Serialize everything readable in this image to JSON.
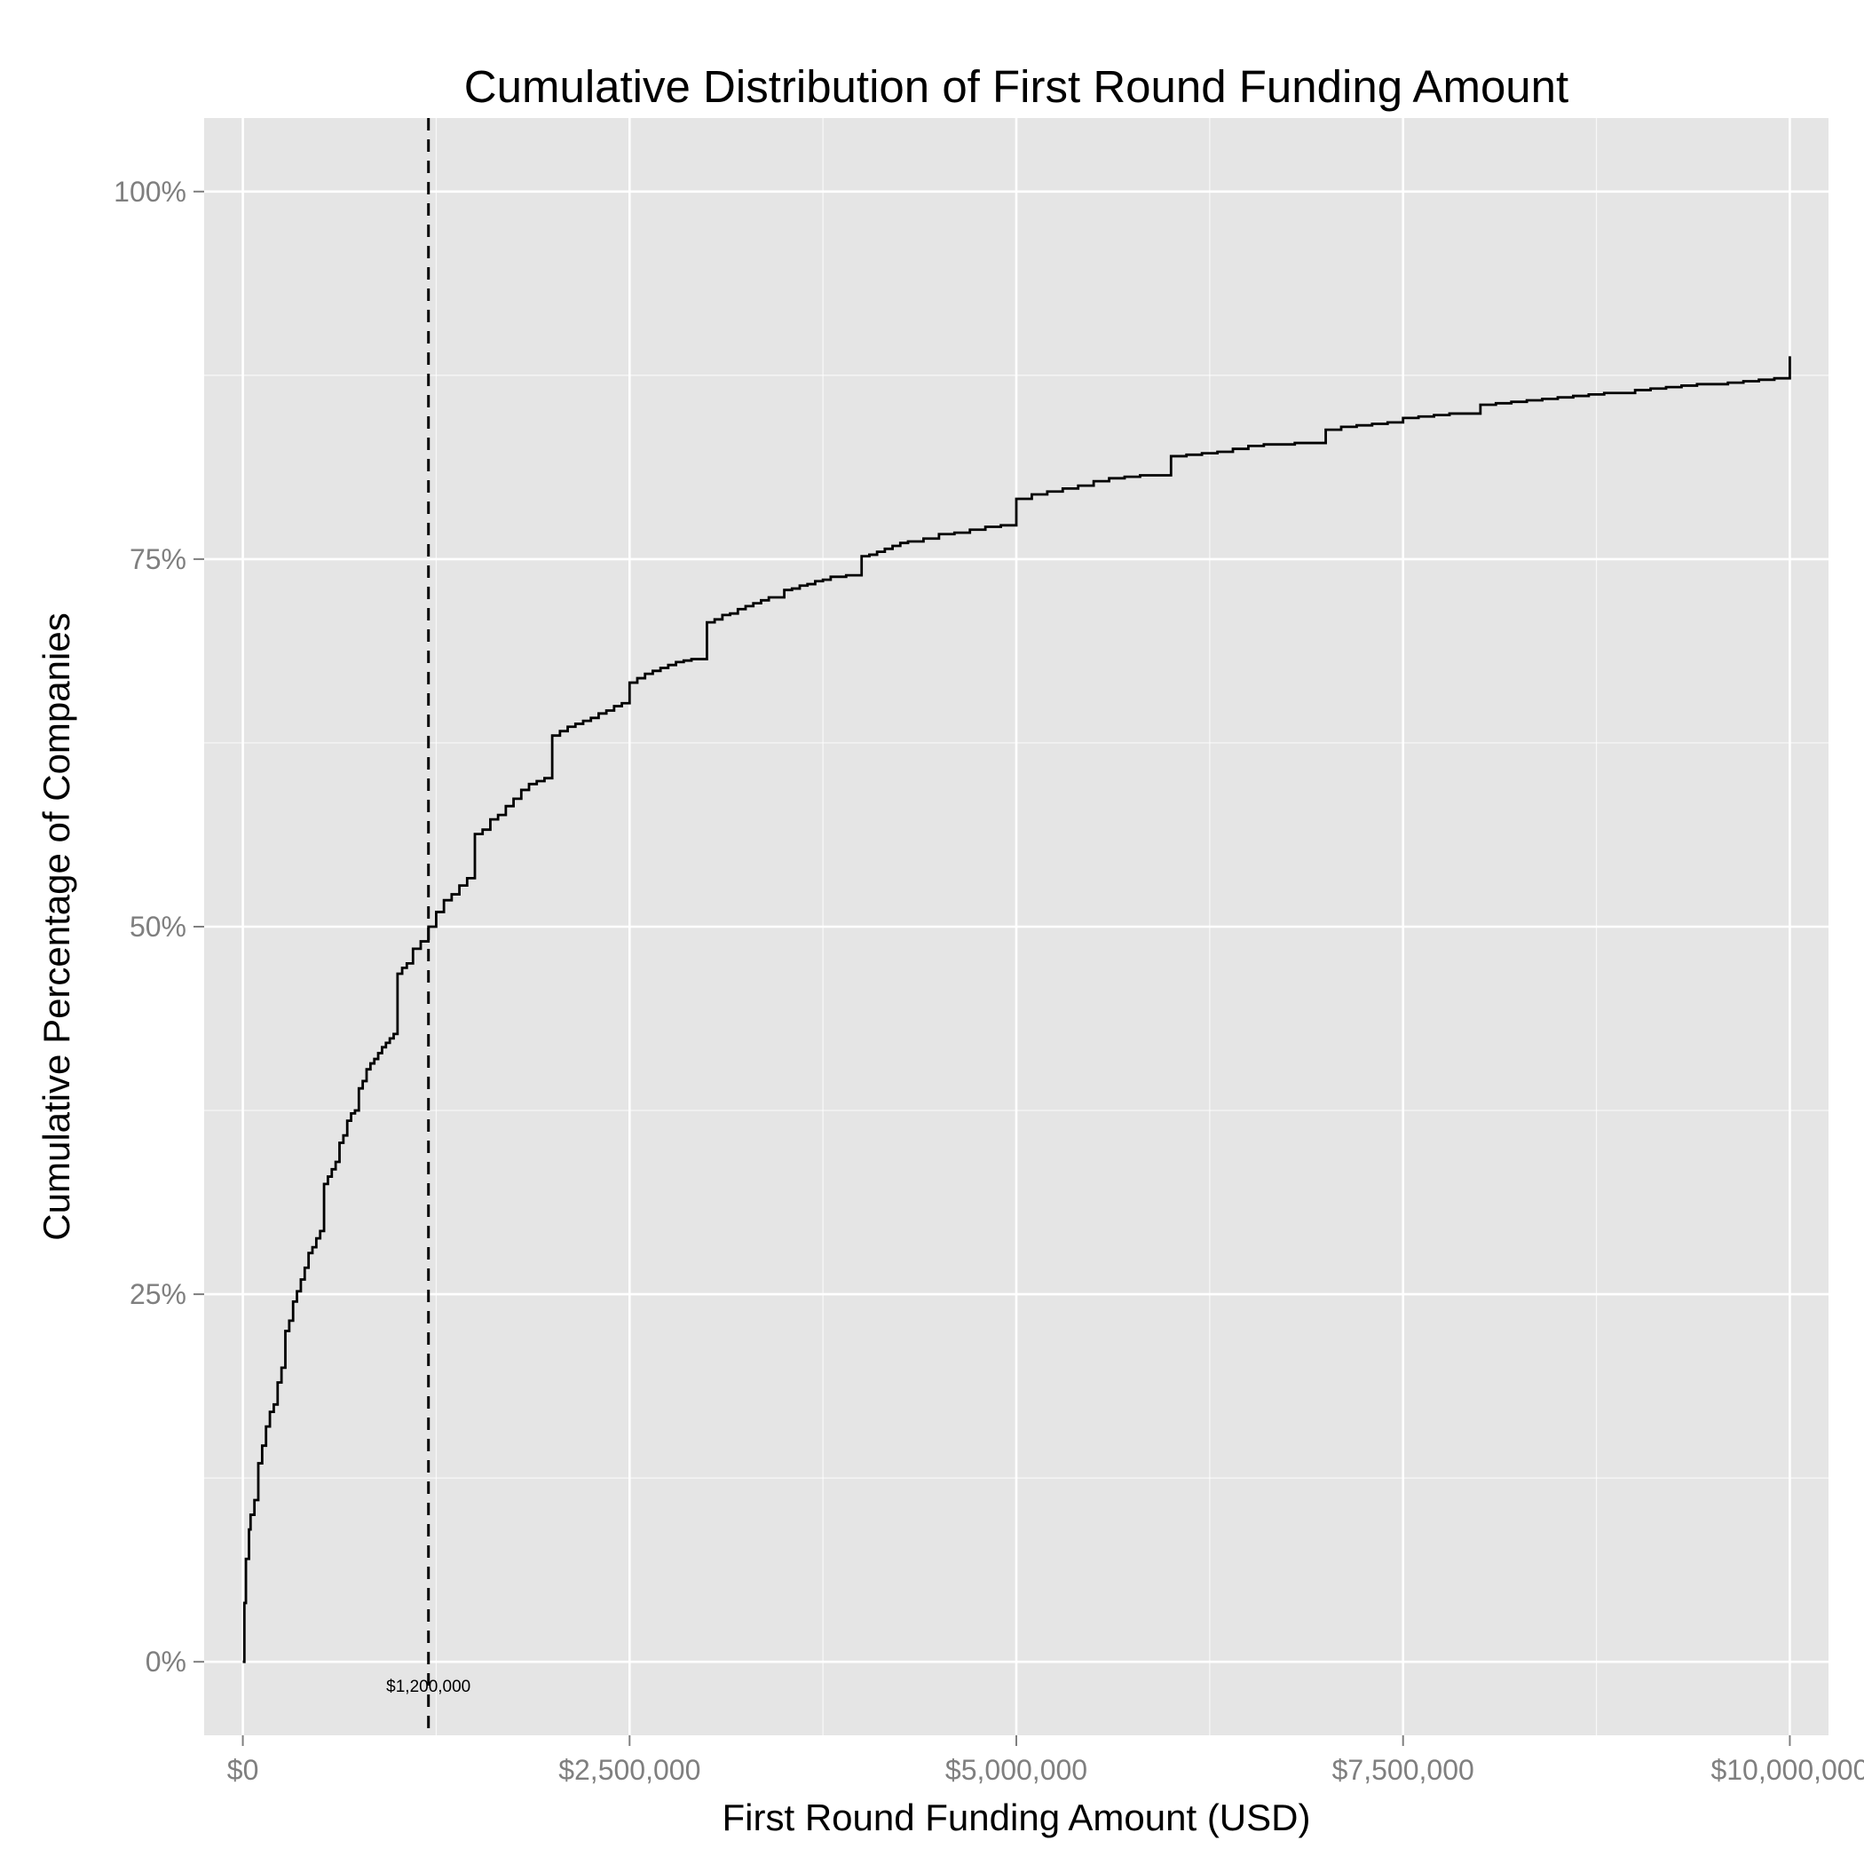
{
  "chart_data": {
    "type": "line",
    "title": "Cumulative Distribution of First Round Funding Amount",
    "xlabel": "First Round Funding Amount (USD)",
    "ylabel": "Cumulative Percentage of Companies",
    "xlim": [
      -250000,
      10250000
    ],
    "ylim": [
      -0.05,
      1.05
    ],
    "x_ticks": [
      0,
      2500000,
      5000000,
      7500000,
      10000000
    ],
    "x_tick_labels": [
      "$0",
      "$2,500,000",
      "$5,000,000",
      "$7,500,000",
      "$10,000,000"
    ],
    "y_ticks": [
      0,
      0.25,
      0.5,
      0.75,
      1.0
    ],
    "y_tick_labels": [
      "0%",
      "25%",
      "50%",
      "75%",
      "100%"
    ],
    "grid": true,
    "legend": "none",
    "colors": {
      "panel": "#e5e5e5",
      "grid": "#ffffff",
      "line": "#000000",
      "tick_text": "#7f7f7f"
    },
    "reference_line": {
      "x": 1200000,
      "label": "$1,200,000",
      "style": "dashed"
    },
    "series": [
      {
        "x": [
          0,
          10000,
          20000,
          40000,
          50000,
          75000,
          100000,
          125000,
          150000,
          175000,
          200000,
          225000,
          250000,
          275000,
          300000,
          325000,
          350000,
          375000,
          400000,
          425000,
          450000,
          475000,
          500000,
          525000,
          550000,
          575000,
          600000,
          625000,
          650000,
          675000,
          700000,
          725000,
          750000,
          775000,
          800000,
          825000,
          850000,
          875000,
          900000,
          925000,
          950000,
          975000,
          1000000,
          1030000,
          1060000,
          1100000,
          1150000,
          1200000,
          1250000,
          1300000,
          1350000,
          1400000,
          1450000,
          1500000,
          1550000,
          1600000,
          1650000,
          1700000,
          1750000,
          1800000,
          1850000,
          1900000,
          1950000,
          2000000,
          2050000,
          2100000,
          2150000,
          2200000,
          2250000,
          2300000,
          2350000,
          2400000,
          2450000,
          2500000,
          2550000,
          2600000,
          2650000,
          2700000,
          2750000,
          2800000,
          2850000,
          2900000,
          3000000,
          3050000,
          3100000,
          3150000,
          3200000,
          3250000,
          3300000,
          3350000,
          3400000,
          3500000,
          3550000,
          3600000,
          3650000,
          3700000,
          3750000,
          3800000,
          3900000,
          4000000,
          4050000,
          4100000,
          4150000,
          4200000,
          4250000,
          4300000,
          4400000,
          4500000,
          4600000,
          4700000,
          4800000,
          4900000,
          5000000,
          5100000,
          5200000,
          5300000,
          5400000,
          5500000,
          5600000,
          5700000,
          5800000,
          6000000,
          6100000,
          6200000,
          6300000,
          6400000,
          6500000,
          6600000,
          6800000,
          7000000,
          7100000,
          7200000,
          7300000,
          7400000,
          7500000,
          7600000,
          7700000,
          7800000,
          8000000,
          8100000,
          8200000,
          8300000,
          8400000,
          8500000,
          8600000,
          8700000,
          8800000,
          9000000,
          9100000,
          9200000,
          9300000,
          9400000,
          9500000,
          9600000,
          9700000,
          9800000,
          9900000,
          10000000,
          10000000
        ],
        "y": [
          0.0,
          0.04,
          0.07,
          0.09,
          0.1,
          0.11,
          0.135,
          0.147,
          0.16,
          0.17,
          0.175,
          0.19,
          0.2,
          0.225,
          0.232,
          0.245,
          0.252,
          0.26,
          0.268,
          0.278,
          0.282,
          0.288,
          0.293,
          0.325,
          0.33,
          0.335,
          0.34,
          0.353,
          0.358,
          0.368,
          0.373,
          0.375,
          0.39,
          0.395,
          0.403,
          0.407,
          0.41,
          0.414,
          0.418,
          0.421,
          0.424,
          0.427,
          0.468,
          0.472,
          0.475,
          0.485,
          0.49,
          0.5,
          0.51,
          0.518,
          0.522,
          0.528,
          0.533,
          0.563,
          0.566,
          0.573,
          0.576,
          0.582,
          0.587,
          0.593,
          0.597,
          0.599,
          0.601,
          0.63,
          0.633,
          0.636,
          0.638,
          0.64,
          0.642,
          0.645,
          0.647,
          0.65,
          0.652,
          0.666,
          0.669,
          0.672,
          0.674,
          0.676,
          0.678,
          0.68,
          0.681,
          0.682,
          0.707,
          0.709,
          0.712,
          0.713,
          0.716,
          0.718,
          0.72,
          0.722,
          0.724,
          0.729,
          0.73,
          0.732,
          0.733,
          0.735,
          0.736,
          0.738,
          0.739,
          0.752,
          0.753,
          0.755,
          0.757,
          0.759,
          0.761,
          0.762,
          0.764,
          0.767,
          0.768,
          0.77,
          0.772,
          0.773,
          0.791,
          0.794,
          0.796,
          0.798,
          0.8,
          0.803,
          0.805,
          0.806,
          0.807,
          0.82,
          0.821,
          0.822,
          0.823,
          0.825,
          0.827,
          0.828,
          0.829,
          0.838,
          0.84,
          0.841,
          0.842,
          0.843,
          0.846,
          0.847,
          0.848,
          0.849,
          0.855,
          0.856,
          0.857,
          0.858,
          0.859,
          0.86,
          0.861,
          0.862,
          0.863,
          0.865,
          0.866,
          0.867,
          0.868,
          0.869,
          0.869,
          0.87,
          0.871,
          0.872,
          0.873,
          0.874,
          0.888
        ]
      }
    ]
  }
}
